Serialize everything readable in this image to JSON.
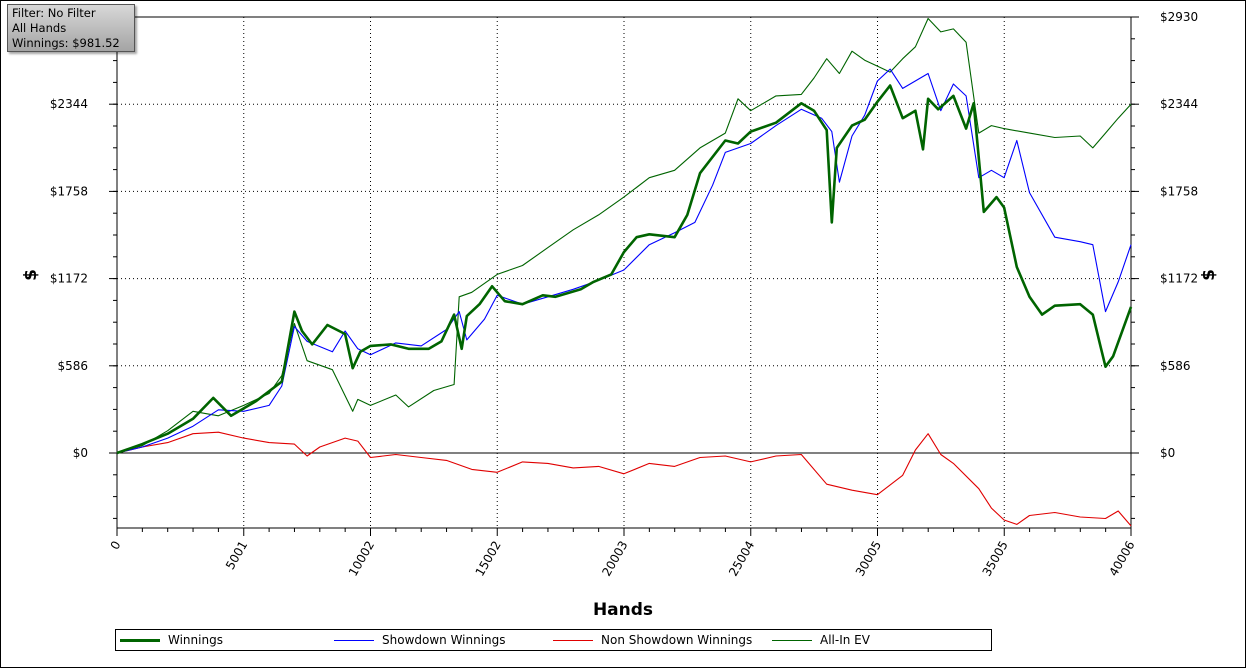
{
  "info_box": {
    "filter": "Filter: No Filter",
    "hands": "All Hands",
    "winnings": "Winnings: $981.52"
  },
  "chart_data": {
    "type": "line",
    "xlabel": "Hands",
    "ylabel": "$",
    "xlim": [
      0,
      40006
    ],
    "ylim": [
      -500,
      2930
    ],
    "x_ticks": [
      0,
      5001,
      10002,
      15002,
      20003,
      25004,
      30005,
      35005,
      40006
    ],
    "y_ticks": [
      {
        "value": 2930,
        "label": "$2930"
      },
      {
        "value": 2344,
        "label": "$2344"
      },
      {
        "value": 1758,
        "label": "$1758"
      },
      {
        "value": 1172,
        "label": "$1172"
      },
      {
        "value": 586,
        "label": "$586"
      },
      {
        "value": 0,
        "label": "$0"
      }
    ],
    "grid": true,
    "legend_position": "bottom",
    "series": [
      {
        "name": "Winnings",
        "color": "#006400",
        "x": [
          0,
          1000,
          2000,
          3000,
          3800,
          4500,
          5500,
          6500,
          7000,
          7300,
          7700,
          8300,
          9000,
          9300,
          9600,
          10000,
          10800,
          11500,
          12300,
          12800,
          13300,
          13600,
          13800,
          14300,
          14800,
          15300,
          16000,
          16800,
          17300,
          18300,
          18800,
          19500,
          20000,
          20500,
          21000,
          22000,
          22500,
          23000,
          24000,
          24500,
          25000,
          26000,
          27000,
          27500,
          28000,
          28200,
          28400,
          29000,
          29500,
          30000,
          30500,
          31000,
          31500,
          31800,
          32000,
          32400,
          33000,
          33500,
          33800,
          34200,
          34700,
          35000,
          35500,
          36000,
          36500,
          37000,
          38000,
          38500,
          38800,
          39000,
          39300,
          40006
        ],
        "y": [
          0,
          60,
          130,
          230,
          370,
          250,
          350,
          480,
          950,
          820,
          730,
          860,
          800,
          570,
          680,
          720,
          730,
          700,
          700,
          750,
          930,
          700,
          920,
          1000,
          1120,
          1020,
          1000,
          1060,
          1050,
          1100,
          1150,
          1200,
          1350,
          1450,
          1470,
          1450,
          1600,
          1880,
          2100,
          2080,
          2160,
          2220,
          2350,
          2300,
          2170,
          1550,
          2050,
          2200,
          2240,
          2360,
          2470,
          2250,
          2300,
          2040,
          2380,
          2310,
          2400,
          2180,
          2350,
          1620,
          1720,
          1650,
          1250,
          1050,
          930,
          990,
          1000,
          930,
          720,
          580,
          650,
          981.52
        ]
      },
      {
        "name": "Showdown Winnings",
        "color": "#0000ff",
        "x": [
          0,
          1000,
          2000,
          3000,
          4000,
          5000,
          6000,
          6500,
          7000,
          7500,
          8500,
          9000,
          9500,
          10000,
          11000,
          12000,
          13000,
          13500,
          13800,
          14500,
          15000,
          16000,
          17000,
          18000,
          19000,
          20000,
          21000,
          22000,
          22800,
          23500,
          24000,
          25000,
          26000,
          27000,
          27800,
          28200,
          28500,
          29000,
          29500,
          30000,
          30500,
          31000,
          32000,
          32500,
          33000,
          33500,
          34000,
          34500,
          35000,
          35500,
          36000,
          37000,
          38000,
          38500,
          39000,
          39500,
          40006
        ],
        "y": [
          0,
          40,
          100,
          180,
          290,
          280,
          320,
          450,
          850,
          750,
          680,
          820,
          700,
          660,
          740,
          720,
          830,
          950,
          760,
          900,
          1060,
          1000,
          1050,
          1100,
          1160,
          1230,
          1400,
          1480,
          1550,
          1800,
          2020,
          2080,
          2200,
          2310,
          2250,
          2160,
          1820,
          2130,
          2270,
          2500,
          2580,
          2450,
          2550,
          2300,
          2480,
          2400,
          1850,
          1900,
          1850,
          2100,
          1750,
          1450,
          1420,
          1400,
          950,
          1150,
          1400
        ]
      },
      {
        "name": "Non Showdown Winnings",
        "color": "#e00000",
        "x": [
          0,
          1000,
          2000,
          3000,
          4000,
          5000,
          6000,
          7000,
          7500,
          8000,
          9000,
          9500,
          10000,
          11000,
          12000,
          13000,
          14000,
          15000,
          16000,
          17000,
          18000,
          19000,
          20000,
          21000,
          22000,
          23000,
          24000,
          25000,
          26000,
          27000,
          28000,
          29000,
          30000,
          31000,
          31500,
          32000,
          32500,
          33000,
          34000,
          34500,
          35000,
          35500,
          36000,
          37000,
          38000,
          39000,
          39500,
          40006
        ],
        "y": [
          0,
          40,
          70,
          130,
          140,
          100,
          70,
          60,
          -20,
          40,
          100,
          80,
          -30,
          -10,
          -30,
          -50,
          -110,
          -130,
          -60,
          -70,
          -100,
          -90,
          -140,
          -70,
          -90,
          -30,
          -20,
          -60,
          -20,
          -10,
          -210,
          -250,
          -280,
          -150,
          20,
          130,
          -10,
          -70,
          -240,
          -370,
          -450,
          -480,
          -420,
          -400,
          -430,
          -440,
          -390,
          -490
        ]
      },
      {
        "name": "All-In EV",
        "color": "#006400",
        "x": [
          0,
          1000,
          2000,
          3000,
          4000,
          5000,
          6000,
          6500,
          7000,
          7500,
          8500,
          9300,
          9500,
          10000,
          11000,
          11500,
          12500,
          13300,
          13500,
          14000,
          15000,
          16000,
          17000,
          18000,
          19000,
          20000,
          21000,
          22000,
          23000,
          24000,
          24500,
          25000,
          26000,
          27000,
          27500,
          28000,
          28500,
          29000,
          29500,
          30000,
          30500,
          31000,
          31500,
          32000,
          32500,
          33000,
          33500,
          34000,
          34500,
          35000,
          36000,
          37000,
          38000,
          38500,
          39000,
          39500,
          40006
        ],
        "y": [
          0,
          50,
          150,
          280,
          250,
          320,
          400,
          520,
          870,
          620,
          560,
          280,
          360,
          320,
          390,
          310,
          420,
          460,
          1050,
          1080,
          1200,
          1260,
          1380,
          1500,
          1600,
          1720,
          1850,
          1900,
          2050,
          2150,
          2380,
          2300,
          2400,
          2410,
          2520,
          2650,
          2550,
          2700,
          2640,
          2600,
          2560,
          2650,
          2730,
          2920,
          2830,
          2850,
          2760,
          2150,
          2200,
          2180,
          2150,
          2120,
          2130,
          2050,
          2150,
          2250,
          2344
        ]
      }
    ]
  }
}
